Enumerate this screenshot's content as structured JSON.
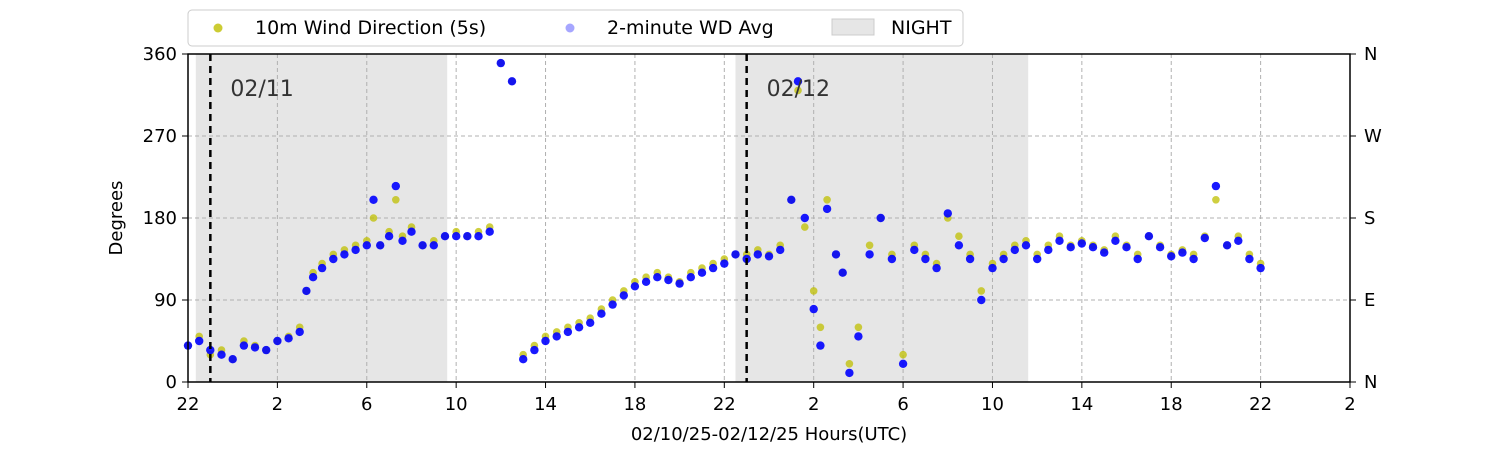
{
  "chart_data": {
    "type": "scatter",
    "xlabel": "02/10/25-02/12/25  Hours(UTC)",
    "ylabel": "Degrees",
    "x_unit": "hours since 02/10/25 00:00 UTC",
    "xlim": [
      22,
      74
    ],
    "ylim": [
      0,
      360
    ],
    "x_tick_values": [
      22,
      26,
      30,
      34,
      38,
      42,
      46,
      50,
      54,
      58,
      62,
      66,
      70,
      74
    ],
    "x_tick_labels": [
      "22",
      "2",
      "6",
      "10",
      "14",
      "18",
      "22",
      "2",
      "6",
      "10",
      "14",
      "18",
      "22",
      "2"
    ],
    "y_ticks": [
      0,
      90,
      180,
      270,
      360
    ],
    "y_tick_labels": [
      "0",
      "90",
      "180",
      "270",
      "360"
    ],
    "right_tick_labels": [
      "N",
      "E",
      "S",
      "W",
      "N"
    ],
    "grid": true,
    "legend_placement": "top, above plot",
    "legend": [
      {
        "label": "10m Wind Direction (5s)",
        "kind": "marker",
        "color": "#bfbf00"
      },
      {
        "label": "2-minute WD Avg",
        "kind": "marker",
        "color": "#0000ff"
      },
      {
        "label": "NIGHT",
        "kind": "patch",
        "color": "#e6e6e6"
      }
    ],
    "night_spans": [
      [
        22.35,
        33.6
      ],
      [
        46.5,
        59.6
      ]
    ],
    "day_markers": [
      {
        "x": 23.0,
        "label": "02/11"
      },
      {
        "x": 47.0,
        "label": "02/12"
      }
    ],
    "series": [
      {
        "name": "10m Wind Direction (5s)",
        "color": "#bfbf00",
        "x": [
          22.0,
          22.5,
          23.0,
          23.5,
          24.0,
          24.5,
          25.0,
          25.5,
          26.0,
          26.5,
          27.0,
          27.3,
          27.6,
          28.0,
          28.5,
          29.0,
          29.5,
          30.0,
          30.3,
          30.6,
          31.0,
          31.3,
          31.6,
          32.0,
          32.5,
          33.0,
          33.5,
          34.0,
          34.5,
          35.0,
          35.5,
          36.0,
          36.5,
          37.0,
          37.5,
          38.0,
          38.5,
          39.0,
          39.5,
          40.0,
          40.5,
          41.0,
          41.5,
          42.0,
          42.5,
          43.0,
          43.5,
          44.0,
          44.5,
          45.0,
          45.5,
          46.0,
          46.5,
          47.0,
          47.5,
          48.0,
          48.5,
          49.0,
          49.3,
          49.6,
          50.0,
          50.3,
          50.6,
          51.0,
          51.3,
          51.6,
          52.0,
          52.5,
          53.0,
          53.5,
          54.0,
          54.5,
          55.0,
          55.5,
          56.0,
          56.5,
          57.0,
          57.5,
          58.0,
          58.5,
          59.0,
          59.5,
          60.0,
          60.5,
          61.0,
          61.5,
          62.0,
          62.5,
          63.0,
          63.5,
          64.0,
          64.5,
          65.0,
          65.5,
          66.0,
          66.5,
          67.0,
          67.5,
          68.0,
          68.5,
          69.0,
          69.5,
          70.0
        ],
        "y": [
          40,
          50,
          30,
          35,
          25,
          45,
          40,
          35,
          45,
          50,
          60,
          100,
          120,
          130,
          140,
          145,
          150,
          155,
          180,
          150,
          165,
          200,
          160,
          170,
          150,
          155,
          160,
          165,
          160,
          165,
          170,
          350,
          330,
          30,
          40,
          50,
          55,
          60,
          65,
          70,
          80,
          90,
          100,
          110,
          115,
          120,
          115,
          110,
          120,
          125,
          130,
          135,
          140,
          140,
          145,
          140,
          150,
          200,
          320,
          170,
          100,
          60,
          200,
          140,
          120,
          20,
          60,
          150,
          180,
          140,
          30,
          150,
          140,
          130,
          180,
          160,
          140,
          100,
          130,
          140,
          150,
          155,
          140,
          150,
          160,
          150,
          155,
          150,
          145,
          160,
          150,
          140,
          160,
          150,
          140,
          145,
          140,
          160,
          200,
          150,
          160,
          140,
          130
        ]
      },
      {
        "name": "2-minute WD Avg",
        "color": "#0000ff",
        "x": [
          22.0,
          22.5,
          23.0,
          23.5,
          24.0,
          24.5,
          25.0,
          25.5,
          26.0,
          26.5,
          27.0,
          27.3,
          27.6,
          28.0,
          28.5,
          29.0,
          29.5,
          30.0,
          30.3,
          30.6,
          31.0,
          31.3,
          31.6,
          32.0,
          32.5,
          33.0,
          33.5,
          34.0,
          34.5,
          35.0,
          35.5,
          36.0,
          36.5,
          37.0,
          37.5,
          38.0,
          38.5,
          39.0,
          39.5,
          40.0,
          40.5,
          41.0,
          41.5,
          42.0,
          42.5,
          43.0,
          43.5,
          44.0,
          44.5,
          45.0,
          45.5,
          46.0,
          46.5,
          47.0,
          47.5,
          48.0,
          48.5,
          49.0,
          49.3,
          49.6,
          50.0,
          50.3,
          50.6,
          51.0,
          51.3,
          51.6,
          52.0,
          52.5,
          53.0,
          53.5,
          54.0,
          54.5,
          55.0,
          55.5,
          56.0,
          56.5,
          57.0,
          57.5,
          58.0,
          58.5,
          59.0,
          59.5,
          60.0,
          60.5,
          61.0,
          61.5,
          62.0,
          62.5,
          63.0,
          63.5,
          64.0,
          64.5,
          65.0,
          65.5,
          66.0,
          66.5,
          67.0,
          67.5,
          68.0,
          68.5,
          69.0,
          69.5,
          70.0
        ],
        "y": [
          40,
          45,
          35,
          30,
          25,
          40,
          38,
          35,
          45,
          48,
          55,
          100,
          115,
          125,
          135,
          140,
          145,
          150,
          200,
          150,
          160,
          215,
          155,
          165,
          150,
          150,
          160,
          160,
          160,
          160,
          165,
          350,
          330,
          25,
          35,
          45,
          50,
          55,
          60,
          65,
          75,
          85,
          95,
          105,
          110,
          115,
          112,
          108,
          115,
          120,
          125,
          130,
          140,
          135,
          140,
          138,
          145,
          200,
          330,
          180,
          80,
          40,
          190,
          140,
          120,
          10,
          50,
          140,
          180,
          135,
          20,
          145,
          135,
          125,
          185,
          150,
          135,
          90,
          125,
          135,
          145,
          150,
          135,
          145,
          155,
          148,
          152,
          148,
          142,
          155,
          148,
          135,
          160,
          148,
          138,
          142,
          135,
          158,
          215,
          150,
          155,
          135,
          125
        ]
      }
    ]
  }
}
